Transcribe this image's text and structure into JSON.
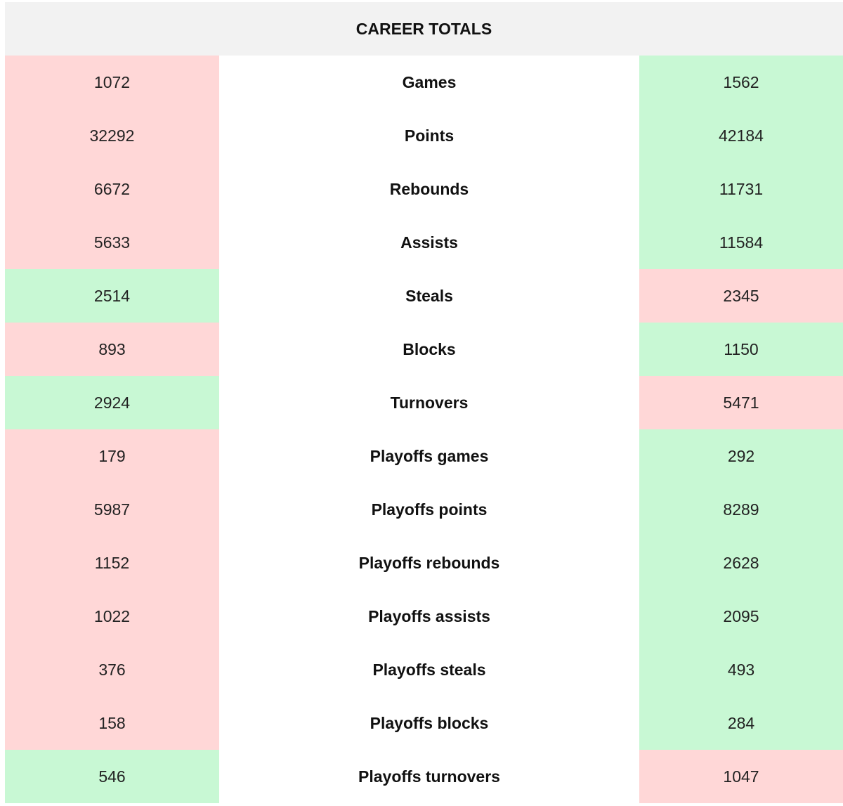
{
  "table": {
    "title": "CAREER TOTALS",
    "colors": {
      "worse": "#ffd7d7",
      "better": "#c8f8d4"
    },
    "rows": [
      {
        "left": 1072,
        "label": "Games",
        "right": 1562,
        "left_color": "worse",
        "right_color": "better"
      },
      {
        "left": 32292,
        "label": "Points",
        "right": 42184,
        "left_color": "worse",
        "right_color": "better"
      },
      {
        "left": 6672,
        "label": "Rebounds",
        "right": 11731,
        "left_color": "worse",
        "right_color": "better"
      },
      {
        "left": 5633,
        "label": "Assists",
        "right": 11584,
        "left_color": "worse",
        "right_color": "better"
      },
      {
        "left": 2514,
        "label": "Steals",
        "right": 2345,
        "left_color": "better",
        "right_color": "worse"
      },
      {
        "left": 893,
        "label": "Blocks",
        "right": 1150,
        "left_color": "worse",
        "right_color": "better"
      },
      {
        "left": 2924,
        "label": "Turnovers",
        "right": 5471,
        "left_color": "better",
        "right_color": "worse"
      },
      {
        "left": 179,
        "label": "Playoffs games",
        "right": 292,
        "left_color": "worse",
        "right_color": "better"
      },
      {
        "left": 5987,
        "label": "Playoffs points",
        "right": 8289,
        "left_color": "worse",
        "right_color": "better"
      },
      {
        "left": 1152,
        "label": "Playoffs rebounds",
        "right": 2628,
        "left_color": "worse",
        "right_color": "better"
      },
      {
        "left": 1022,
        "label": "Playoffs assists",
        "right": 2095,
        "left_color": "worse",
        "right_color": "better"
      },
      {
        "left": 376,
        "label": "Playoffs steals",
        "right": 493,
        "left_color": "worse",
        "right_color": "better"
      },
      {
        "left": 158,
        "label": "Playoffs blocks",
        "right": 284,
        "left_color": "worse",
        "right_color": "better"
      },
      {
        "left": 546,
        "label": "Playoffs turnovers",
        "right": 1047,
        "left_color": "better",
        "right_color": "worse"
      }
    ]
  }
}
